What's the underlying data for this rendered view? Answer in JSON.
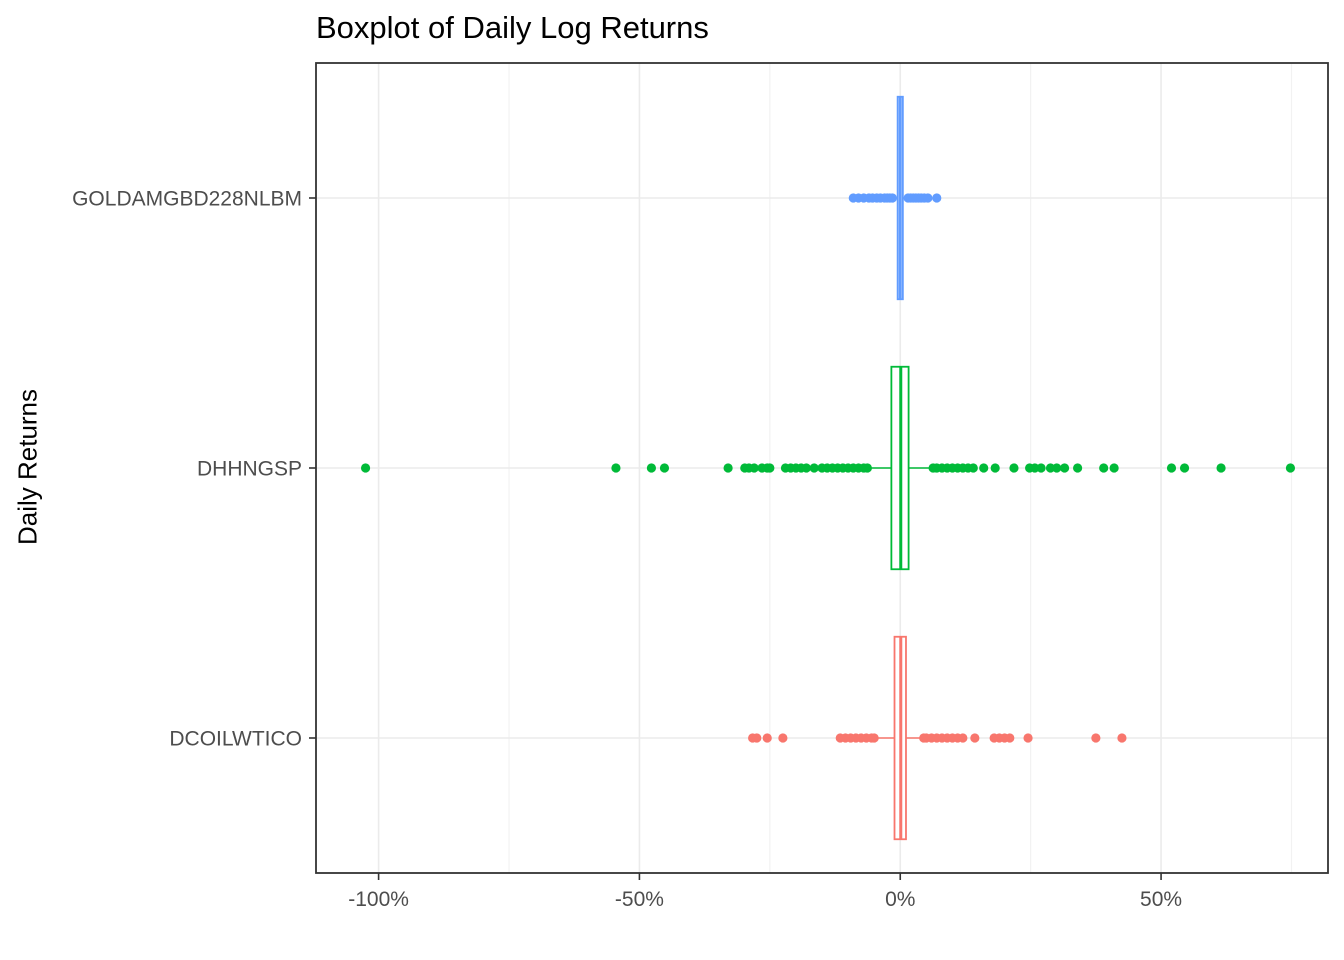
{
  "chart_data": {
    "type": "boxplot",
    "title": "Boxplot of Daily Log Returns",
    "ylabel": "Daily Returns",
    "xlabel": "",
    "xlim": [
      -112,
      82
    ],
    "x_ticks": [
      -100,
      -50,
      0,
      50
    ],
    "x_tick_labels": [
      "-100%",
      "-50%",
      "0%",
      "50%"
    ],
    "grid": true,
    "legend": "none",
    "series": [
      {
        "name": "GOLDAMGBD228NLBM",
        "color": "#619CFF",
        "box": {
          "whisker_low": -1.2,
          "q1": -0.5,
          "median": 0.0,
          "q3": 0.5,
          "whisker_high": 1.2
        },
        "outliers": [
          -9.0,
          -8.0,
          -7.0,
          -6.0,
          -5.3,
          -4.5,
          -3.8,
          -3.0,
          -2.5,
          -2.0,
          -1.5,
          1.5,
          2.0,
          2.5,
          3.0,
          3.5,
          4.0,
          4.6,
          5.3,
          7.0
        ]
      },
      {
        "name": "DHHNGSP",
        "color": "#00BA38",
        "box": {
          "whisker_low": -5.8,
          "q1": -1.7,
          "median": 0.1,
          "q3": 1.6,
          "whisker_high": 5.8
        },
        "outliers": [
          -102.5,
          -54.5,
          -47.7,
          -45.2,
          -33.0,
          -29.8,
          -29.0,
          -28.0,
          -26.5,
          -25.5,
          -25.0,
          -22.0,
          -21.0,
          -20.0,
          -19.0,
          -18.0,
          -16.5,
          -15.0,
          -14.0,
          -13.0,
          -12.0,
          -11.0,
          -10.0,
          -9.0,
          -8.0,
          -7.0,
          -6.3,
          6.3,
          7.0,
          8.0,
          9.0,
          10.0,
          11.0,
          12.0,
          13.0,
          14.0,
          16.0,
          18.2,
          21.8,
          24.8,
          25.8,
          27.0,
          28.8,
          30.0,
          31.5,
          34.0,
          39.0,
          41.0,
          52.0,
          54.5,
          61.5,
          74.8
        ]
      },
      {
        "name": "DCOILWTICO",
        "color": "#F8766D",
        "box": {
          "whisker_low": -4.5,
          "q1": -1.1,
          "median": 0.1,
          "q3": 1.1,
          "whisker_high": 4.2
        },
        "outliers": [
          -28.3,
          -27.5,
          -25.5,
          -22.5,
          -11.5,
          -10.5,
          -9.5,
          -8.5,
          -7.5,
          -6.5,
          -5.5,
          -5.0,
          4.5,
          5.0,
          6.0,
          7.0,
          8.0,
          9.0,
          10.0,
          11.0,
          12.0,
          14.3,
          18.0,
          19.0,
          20.0,
          21.0,
          24.5,
          37.5,
          42.5
        ]
      }
    ]
  }
}
